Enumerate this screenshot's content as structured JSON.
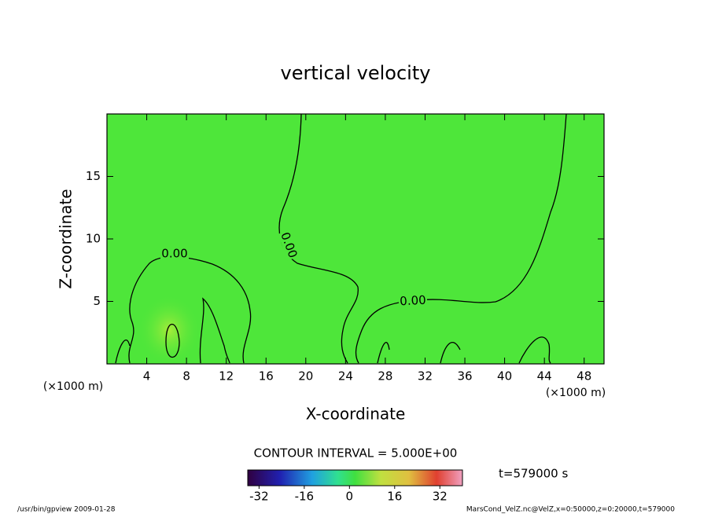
{
  "chart_data": {
    "type": "contour",
    "title": "vertical velocity",
    "x_label": "X-coordinate",
    "y_label": "Z-coordinate",
    "x_unit": "(×1000 m)",
    "y_unit": "(×1000 m)",
    "xlim": [
      0,
      50
    ],
    "ylim": [
      0,
      20
    ],
    "xticks": [
      4,
      8,
      12,
      16,
      20,
      24,
      28,
      32,
      36,
      40,
      44,
      48
    ],
    "yticks": [
      5,
      10,
      15
    ],
    "contour_levels": [
      {
        "value": 0,
        "label": "0.00"
      }
    ],
    "contour_interval_text": "CONTOUR INTERVAL = 5.000E+00",
    "time_label": "t=579000 s",
    "clim": [
      -36,
      40
    ],
    "colorbar_ticks": [
      -32,
      -16,
      0,
      16,
      32
    ],
    "footer_left": "/usr/bin/gpview  2009-01-28",
    "footer_right": "MarsCond_VelZ.nc@VelZ,x=0:50000,z=0:20000,t=579000"
  }
}
